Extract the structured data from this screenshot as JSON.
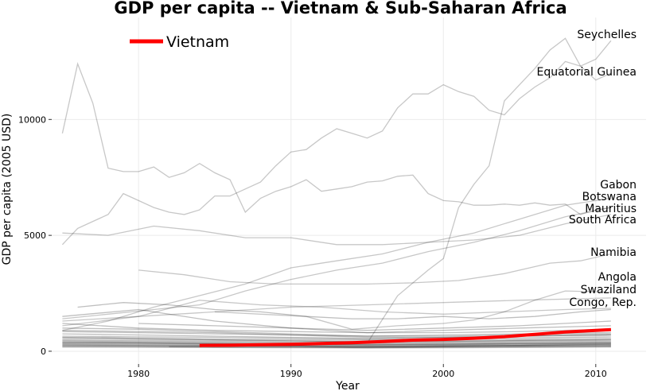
{
  "chart_data": {
    "type": "line",
    "title": "GDP per capita -- Vietnam & Sub-Saharan Africa",
    "xlabel": "Year",
    "ylabel": "GDP per capita (2005 USD)",
    "xlim": [
      1974.3,
      2013.3
    ],
    "ylim": [
      -550,
      14400
    ],
    "x_ticks": [
      1980,
      1990,
      2000,
      2010
    ],
    "y_ticks": [
      0,
      5000,
      10000
    ],
    "grid": true,
    "legend": {
      "position": "top-left",
      "entries": [
        "Vietnam"
      ]
    },
    "colors": {
      "highlight": "#ff0000",
      "others": "#000000",
      "grid": "#ebebeb"
    },
    "highlight_series": {
      "name": "Vietnam",
      "x": [
        1984,
        1986,
        1988,
        1990,
        1992,
        1994,
        1996,
        1998,
        2000,
        2002,
        2004,
        2006,
        2008,
        2010,
        2011
      ],
      "values": [
        250,
        260,
        280,
        300,
        330,
        370,
        420,
        480,
        510,
        560,
        630,
        730,
        830,
        900,
        930
      ]
    },
    "labeled_series": [
      {
        "name": "Seychelles",
        "x": [
          1975,
          1976,
          1977,
          1978,
          1979,
          1980,
          1981,
          1982,
          1983,
          1984,
          1985,
          1986,
          1987,
          1988,
          1989,
          1990,
          1991,
          1992,
          1993,
          1994,
          1995,
          1996,
          1997,
          1998,
          1999,
          2000,
          2001,
          2002,
          2003,
          2004,
          2005,
          2006,
          2007,
          2008,
          2009,
          2010,
          2011
        ],
        "values": [
          9400,
          12400,
          10700,
          7900,
          7750,
          7750,
          7950,
          7500,
          7700,
          8100,
          7700,
          7400,
          6000,
          6600,
          6900,
          7100,
          7400,
          6900,
          7000,
          7100,
          7300,
          7350,
          7550,
          7600,
          6800,
          6500,
          6450,
          6300,
          6300,
          6350,
          6300,
          6400,
          6300,
          6350,
          5900,
          6100,
          6200
        ]
      },
      {
        "name": "Equatorial Guinea",
        "x": [
          1985,
          1990,
          1995,
          1997,
          1999,
          2000,
          2001,
          2002,
          2003,
          2004,
          2005,
          2006,
          2007,
          2008,
          2009,
          2010,
          2011
        ],
        "values": [
          300,
          320,
          350,
          2400,
          3500,
          4000,
          6200,
          7200,
          8000,
          10800,
          11500,
          12200,
          13000,
          13500,
          12300,
          11700,
          12000
        ]
      },
      {
        "name": "Gabon",
        "x": [
          1975,
          1976,
          1977,
          1978,
          1979,
          1980,
          1981,
          1982,
          1983,
          1984,
          1985,
          1986,
          1987,
          1988,
          1989,
          1990,
          1991,
          1992,
          1993,
          1994,
          1995,
          1996,
          1997,
          1998,
          1999,
          2000,
          2001,
          2002,
          2003,
          2004,
          2005,
          2006,
          2007,
          2008,
          2009,
          2010,
          2011
        ],
        "values": [
          4600,
          5300,
          5600,
          5900,
          6800,
          6500,
          6200,
          6000,
          5900,
          6100,
          6700,
          6700,
          7000,
          7300,
          8000,
          8600,
          8700,
          9200,
          9600,
          9400,
          9200,
          9500,
          10500,
          11100,
          11100,
          11500,
          11200,
          11000,
          10400,
          10200,
          10900,
          11400,
          11800,
          12500,
          12300,
          12600,
          13400
        ]
      },
      {
        "name": "Botswana",
        "x": [
          1975,
          1978,
          1981,
          1984,
          1987,
          1990,
          1993,
          1996,
          1999,
          2002,
          2005,
          2008,
          2011
        ],
        "values": [
          900,
          1300,
          1900,
          2400,
          2900,
          3600,
          3900,
          4200,
          4700,
          5100,
          5700,
          6300,
          6600
        ]
      },
      {
        "name": "Mauritius",
        "x": [
          1975,
          1978,
          1981,
          1984,
          1987,
          1990,
          1993,
          1996,
          1999,
          2002,
          2005,
          2008,
          2011
        ],
        "values": [
          1400,
          1600,
          1800,
          2000,
          2600,
          3100,
          3500,
          3800,
          4300,
          4700,
          5200,
          5800,
          6200
        ]
      },
      {
        "name": "South Africa",
        "x": [
          1975,
          1978,
          1981,
          1984,
          1987,
          1990,
          1993,
          1996,
          1999,
          2002,
          2005,
          2008,
          2011
        ],
        "values": [
          5100,
          5000,
          5400,
          5200,
          4900,
          4900,
          4600,
          4600,
          4700,
          4800,
          5000,
          5500,
          5900
        ]
      },
      {
        "name": "Namibia",
        "x": [
          1980,
          1983,
          1986,
          1989,
          1992,
          1995,
          1998,
          2001,
          2004,
          2007,
          2009,
          2011
        ],
        "values": [
          3500,
          3300,
          3000,
          2900,
          2900,
          2900,
          2950,
          3050,
          3350,
          3800,
          3900,
          4200
        ]
      },
      {
        "name": "Angola",
        "x": [
          1985,
          1988,
          1991,
          1994,
          1997,
          2000,
          2002,
          2004,
          2006,
          2008,
          2011
        ],
        "values": [
          1700,
          1600,
          1500,
          950,
          1100,
          1200,
          1350,
          1700,
          2200,
          2600,
          2550
        ]
      },
      {
        "name": "Swaziland",
        "x": [
          1975,
          1980,
          1985,
          1990,
          1995,
          2000,
          2005,
          2011
        ],
        "values": [
          1300,
          1500,
          1700,
          1900,
          2000,
          2100,
          2200,
          2300
        ]
      },
      {
        "name": "Congo, Rep.",
        "x": [
          1975,
          1980,
          1984,
          1988,
          1992,
          1996,
          2000,
          2004,
          2008,
          2011
        ],
        "values": [
          1100,
          1500,
          2200,
          2000,
          1900,
          1700,
          1600,
          1700,
          1800,
          1850
        ]
      }
    ],
    "background_series": [
      {
        "x": [
          1976,
          1979,
          1982,
          1985,
          1988,
          1991,
          1994,
          1997,
          2000,
          2003,
          2006,
          2009,
          2011
        ],
        "values": [
          1900,
          2100,
          2000,
          1800,
          1700,
          1500,
          1400,
          1400,
          1500,
          1400,
          1500,
          1700,
          1800
        ]
      },
      {
        "x": [
          1975,
          1980,
          1985,
          1990,
          1995,
          2000,
          2005,
          2011
        ],
        "values": [
          1500,
          1800,
          1300,
          1000,
          800,
          900,
          1000,
          1100
        ]
      },
      {
        "x": [
          1975,
          1980,
          1985,
          1990,
          1995,
          2000,
          2005,
          2011
        ],
        "values": [
          1200,
          1000,
          900,
          850,
          800,
          800,
          850,
          950
        ]
      },
      {
        "x": [
          1975,
          1980,
          1985,
          1990,
          1995,
          2000,
          2005,
          2011
        ],
        "values": [
          1000,
          950,
          850,
          750,
          650,
          700,
          750,
          800
        ]
      },
      {
        "x": [
          1975,
          1980,
          1985,
          1990,
          1995,
          2000,
          2005,
          2011
        ],
        "values": [
          850,
          800,
          750,
          700,
          650,
          650,
          700,
          750
        ]
      },
      {
        "x": [
          1975,
          1980,
          1985,
          1990,
          1995,
          2000,
          2005,
          2011
        ],
        "values": [
          750,
          700,
          650,
          600,
          550,
          600,
          650,
          700
        ]
      },
      {
        "x": [
          1975,
          1980,
          1985,
          1990,
          1995,
          2000,
          2005,
          2011
        ],
        "values": [
          650,
          620,
          600,
          560,
          520,
          540,
          580,
          620
        ]
      },
      {
        "x": [
          1975,
          1980,
          1985,
          1990,
          1995,
          2000,
          2005,
          2011
        ],
        "values": [
          580,
          560,
          520,
          500,
          480,
          500,
          520,
          560
        ]
      },
      {
        "x": [
          1975,
          1980,
          1985,
          1990,
          1995,
          2000,
          2005,
          2011
        ],
        "values": [
          520,
          500,
          470,
          440,
          420,
          440,
          470,
          500
        ]
      },
      {
        "x": [
          1975,
          1980,
          1985,
          1990,
          1995,
          2000,
          2005,
          2011
        ],
        "values": [
          470,
          450,
          420,
          390,
          370,
          390,
          420,
          450
        ]
      },
      {
        "x": [
          1975,
          1980,
          1985,
          1990,
          1995,
          2000,
          2005,
          2011
        ],
        "values": [
          430,
          410,
          380,
          350,
          330,
          350,
          380,
          410
        ]
      },
      {
        "x": [
          1975,
          1980,
          1985,
          1990,
          1995,
          2000,
          2005,
          2011
        ],
        "values": [
          390,
          370,
          340,
          310,
          290,
          310,
          340,
          370
        ]
      },
      {
        "x": [
          1975,
          1980,
          1985,
          1990,
          1995,
          2000,
          2005,
          2011
        ],
        "values": [
          350,
          340,
          310,
          280,
          260,
          280,
          310,
          340
        ]
      },
      {
        "x": [
          1975,
          1980,
          1985,
          1990,
          1995,
          2000,
          2005,
          2011
        ],
        "values": [
          320,
          300,
          280,
          250,
          230,
          250,
          280,
          310
        ]
      },
      {
        "x": [
          1975,
          1980,
          1985,
          1990,
          1995,
          2000,
          2005,
          2011
        ],
        "values": [
          290,
          270,
          250,
          230,
          210,
          230,
          250,
          280
        ]
      },
      {
        "x": [
          1975,
          1980,
          1985,
          1990,
          1995,
          2000,
          2005,
          2011
        ],
        "values": [
          260,
          250,
          230,
          210,
          190,
          210,
          230,
          250
        ]
      },
      {
        "x": [
          1975,
          1980,
          1985,
          1990,
          1995,
          2000,
          2005,
          2011
        ],
        "values": [
          240,
          220,
          200,
          190,
          170,
          190,
          210,
          230
        ]
      },
      {
        "x": [
          1975,
          1980,
          1985,
          1990,
          1995,
          2000,
          2005,
          2011
        ],
        "values": [
          210,
          200,
          180,
          170,
          150,
          170,
          190,
          210
        ]
      },
      {
        "x": [
          1975,
          1980,
          1985,
          1990,
          1995,
          2000,
          2005,
          2011
        ],
        "values": [
          900,
          850,
          800,
          700,
          600,
          600,
          650,
          700
        ]
      },
      {
        "x": [
          1980,
          1985,
          1990,
          1995,
          2000,
          2005,
          2011
        ],
        "values": [
          1200,
          1100,
          1000,
          900,
          1000,
          1100,
          1300
        ]
      },
      {
        "x": [
          1982,
          1986,
          1990,
          1994,
          1998,
          2002,
          2006,
          2011
        ],
        "values": [
          200,
          220,
          240,
          180,
          200,
          230,
          260,
          300
        ]
      },
      {
        "x": [
          1975,
          1980,
          1985,
          1990,
          1995,
          2000,
          2005,
          2011
        ],
        "values": [
          600,
          550,
          500,
          450,
          400,
          420,
          460,
          500
        ]
      },
      {
        "x": [
          1975,
          1980,
          1985,
          1990,
          1995,
          2000,
          2005,
          2011
        ],
        "values": [
          380,
          360,
          330,
          300,
          280,
          300,
          330,
          360
        ]
      },
      {
        "x": [
          1975,
          1980,
          1985,
          1990,
          1995,
          2000,
          2005,
          2011
        ],
        "values": [
          180,
          170,
          160,
          150,
          140,
          150,
          160,
          180
        ]
      }
    ]
  }
}
